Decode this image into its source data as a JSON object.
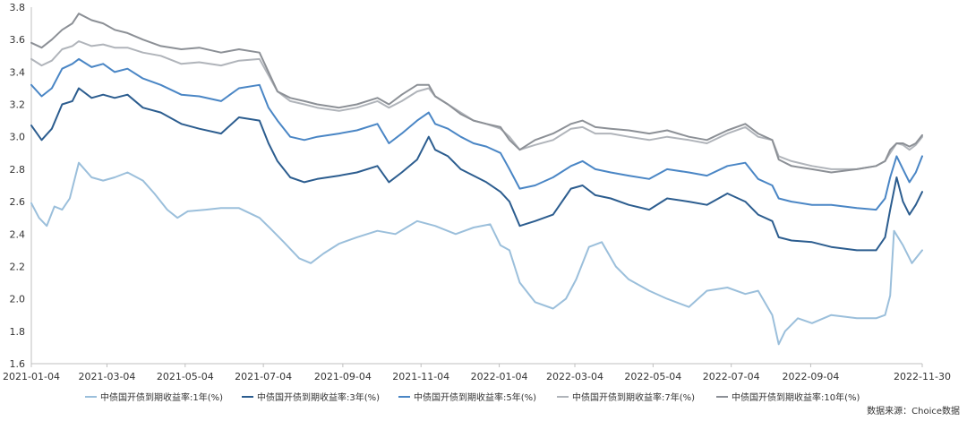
{
  "chart_data": {
    "type": "line",
    "title": "",
    "xlabel": "",
    "ylabel": "",
    "ylim": [
      1.6,
      3.8
    ],
    "yticks": [
      "1.6",
      "1.8",
      "2.0",
      "2.2",
      "2.4",
      "2.6",
      "2.8",
      "3.0",
      "3.2",
      "3.4",
      "3.6",
      "3.8"
    ],
    "x_range": [
      "2021-01-04",
      "2022-11-30"
    ],
    "xticks": [
      "2021-01-04",
      "2021-03-04",
      "2021-05-04",
      "2021-07-04",
      "2021-09-04",
      "2021-11-04",
      "2022-01-04",
      "2022-03-04",
      "2022-05-04",
      "2022-07-04",
      "2022-09-04",
      "2022-11-30"
    ],
    "grid": false,
    "legend_position": "bottom",
    "source": "数据来源：Choice数据",
    "series": [
      {
        "name": "中债国开债到期收益率:1年(%)",
        "color": "#9bbfdb",
        "x": [
          "2021-01-04",
          "2021-01-10",
          "2021-01-16",
          "2021-01-22",
          "2021-01-28",
          "2021-02-03",
          "2021-02-10",
          "2021-02-20",
          "2021-03-01",
          "2021-03-10",
          "2021-03-20",
          "2021-04-01",
          "2021-04-10",
          "2021-04-20",
          "2021-04-28",
          "2021-05-06",
          "2021-05-20",
          "2021-06-01",
          "2021-06-15",
          "2021-07-01",
          "2021-07-10",
          "2021-07-20",
          "2021-08-01",
          "2021-08-10",
          "2021-08-20",
          "2021-09-01",
          "2021-09-15",
          "2021-10-01",
          "2021-10-15",
          "2021-11-01",
          "2021-11-15",
          "2021-12-01",
          "2021-12-15",
          "2021-12-28",
          "2022-01-05",
          "2022-01-12",
          "2022-01-20",
          "2022-02-01",
          "2022-02-15",
          "2022-02-25",
          "2022-03-05",
          "2022-03-15",
          "2022-03-25",
          "2022-04-05",
          "2022-04-15",
          "2022-05-01",
          "2022-05-15",
          "2022-06-01",
          "2022-06-15",
          "2022-07-01",
          "2022-07-15",
          "2022-07-25",
          "2022-08-05",
          "2022-08-10",
          "2022-08-15",
          "2022-08-25",
          "2022-09-05",
          "2022-09-20",
          "2022-10-10",
          "2022-10-25",
          "2022-11-01",
          "2022-11-05",
          "2022-11-08",
          "2022-11-15",
          "2022-11-22",
          "2022-11-30"
        ],
        "values": [
          2.59,
          2.5,
          2.45,
          2.57,
          2.55,
          2.62,
          2.84,
          2.75,
          2.73,
          2.75,
          2.78,
          2.73,
          2.65,
          2.55,
          2.5,
          2.54,
          2.55,
          2.56,
          2.56,
          2.5,
          2.43,
          2.35,
          2.25,
          2.22,
          2.28,
          2.34,
          2.38,
          2.42,
          2.4,
          2.48,
          2.45,
          2.4,
          2.44,
          2.46,
          2.33,
          2.3,
          2.1,
          1.98,
          1.94,
          2.0,
          2.12,
          2.32,
          2.35,
          2.2,
          2.12,
          2.05,
          2.0,
          1.95,
          2.05,
          2.07,
          2.03,
          2.05,
          1.9,
          1.72,
          1.8,
          1.88,
          1.85,
          1.9,
          1.88,
          1.88,
          1.9,
          2.02,
          2.42,
          2.33,
          2.22,
          2.3
        ]
      },
      {
        "name": "中债国开债到期收益率:3年(%)",
        "color": "#2c5d8f",
        "x": [
          "2021-01-04",
          "2021-01-12",
          "2021-01-20",
          "2021-01-28",
          "2021-02-05",
          "2021-02-10",
          "2021-02-20",
          "2021-03-01",
          "2021-03-10",
          "2021-03-20",
          "2021-04-01",
          "2021-04-15",
          "2021-05-01",
          "2021-05-15",
          "2021-06-01",
          "2021-06-15",
          "2021-07-01",
          "2021-07-08",
          "2021-07-15",
          "2021-07-25",
          "2021-08-05",
          "2021-08-15",
          "2021-09-01",
          "2021-09-15",
          "2021-10-01",
          "2021-10-10",
          "2021-10-20",
          "2021-11-01",
          "2021-11-10",
          "2021-11-15",
          "2021-11-25",
          "2021-12-05",
          "2021-12-15",
          "2021-12-25",
          "2022-01-05",
          "2022-01-12",
          "2022-01-20",
          "2022-02-01",
          "2022-02-15",
          "2022-03-01",
          "2022-03-10",
          "2022-03-20",
          "2022-04-01",
          "2022-04-15",
          "2022-05-01",
          "2022-05-15",
          "2022-06-01",
          "2022-06-15",
          "2022-07-01",
          "2022-07-15",
          "2022-07-25",
          "2022-08-05",
          "2022-08-10",
          "2022-08-20",
          "2022-09-05",
          "2022-09-20",
          "2022-10-10",
          "2022-10-25",
          "2022-11-01",
          "2022-11-05",
          "2022-11-10",
          "2022-11-15",
          "2022-11-20",
          "2022-11-25",
          "2022-11-30"
        ],
        "values": [
          3.07,
          2.98,
          3.05,
          3.2,
          3.22,
          3.3,
          3.24,
          3.26,
          3.24,
          3.26,
          3.18,
          3.15,
          3.08,
          3.05,
          3.02,
          3.12,
          3.1,
          2.96,
          2.85,
          2.75,
          2.72,
          2.74,
          2.76,
          2.78,
          2.82,
          2.72,
          2.78,
          2.86,
          3.0,
          2.92,
          2.88,
          2.8,
          2.76,
          2.72,
          2.66,
          2.6,
          2.45,
          2.48,
          2.52,
          2.68,
          2.7,
          2.64,
          2.62,
          2.58,
          2.55,
          2.62,
          2.6,
          2.58,
          2.65,
          2.6,
          2.52,
          2.48,
          2.38,
          2.36,
          2.35,
          2.32,
          2.3,
          2.3,
          2.38,
          2.55,
          2.75,
          2.6,
          2.52,
          2.58,
          2.66
        ]
      },
      {
        "name": "中债国开债到期收益率:5年(%)",
        "color": "#4a86c5",
        "x": [
          "2021-01-04",
          "2021-01-12",
          "2021-01-20",
          "2021-01-28",
          "2021-02-05",
          "2021-02-10",
          "2021-02-20",
          "2021-03-01",
          "2021-03-10",
          "2021-03-20",
          "2021-04-01",
          "2021-04-15",
          "2021-05-01",
          "2021-05-15",
          "2021-06-01",
          "2021-06-15",
          "2021-07-01",
          "2021-07-08",
          "2021-07-15",
          "2021-07-25",
          "2021-08-05",
          "2021-08-15",
          "2021-09-01",
          "2021-09-15",
          "2021-10-01",
          "2021-10-10",
          "2021-10-20",
          "2021-11-01",
          "2021-11-10",
          "2021-11-15",
          "2021-11-25",
          "2021-12-05",
          "2021-12-15",
          "2021-12-25",
          "2022-01-05",
          "2022-01-12",
          "2022-01-20",
          "2022-02-01",
          "2022-02-15",
          "2022-03-01",
          "2022-03-10",
          "2022-03-20",
          "2022-04-01",
          "2022-04-15",
          "2022-05-01",
          "2022-05-15",
          "2022-06-01",
          "2022-06-15",
          "2022-07-01",
          "2022-07-15",
          "2022-07-25",
          "2022-08-05",
          "2022-08-10",
          "2022-08-20",
          "2022-09-05",
          "2022-09-20",
          "2022-10-10",
          "2022-10-25",
          "2022-11-01",
          "2022-11-05",
          "2022-11-10",
          "2022-11-15",
          "2022-11-20",
          "2022-11-25",
          "2022-11-30"
        ],
        "values": [
          3.32,
          3.25,
          3.3,
          3.42,
          3.45,
          3.48,
          3.43,
          3.45,
          3.4,
          3.42,
          3.36,
          3.32,
          3.26,
          3.25,
          3.22,
          3.3,
          3.32,
          3.18,
          3.1,
          3.0,
          2.98,
          3.0,
          3.02,
          3.04,
          3.08,
          2.96,
          3.02,
          3.1,
          3.15,
          3.08,
          3.05,
          3.0,
          2.96,
          2.94,
          2.9,
          2.8,
          2.68,
          2.7,
          2.75,
          2.82,
          2.85,
          2.8,
          2.78,
          2.76,
          2.74,
          2.8,
          2.78,
          2.76,
          2.82,
          2.84,
          2.74,
          2.7,
          2.62,
          2.6,
          2.58,
          2.58,
          2.56,
          2.55,
          2.62,
          2.75,
          2.88,
          2.8,
          2.72,
          2.78,
          2.88
        ]
      },
      {
        "name": "中债国开债到期收益率:7年(%)",
        "color": "#b0b4ba",
        "x": [
          "2021-01-04",
          "2021-01-12",
          "2021-01-20",
          "2021-01-28",
          "2021-02-05",
          "2021-02-10",
          "2021-02-20",
          "2021-03-01",
          "2021-03-10",
          "2021-03-20",
          "2021-04-01",
          "2021-04-15",
          "2021-05-01",
          "2021-05-15",
          "2021-06-01",
          "2021-06-15",
          "2021-07-01",
          "2021-07-08",
          "2021-07-15",
          "2021-07-25",
          "2021-08-05",
          "2021-08-15",
          "2021-09-01",
          "2021-09-15",
          "2021-10-01",
          "2021-10-10",
          "2021-10-20",
          "2021-11-01",
          "2021-11-10",
          "2021-11-15",
          "2021-11-25",
          "2021-12-05",
          "2021-12-15",
          "2021-12-25",
          "2022-01-05",
          "2022-01-12",
          "2022-01-20",
          "2022-02-01",
          "2022-02-15",
          "2022-03-01",
          "2022-03-10",
          "2022-03-20",
          "2022-04-01",
          "2022-04-15",
          "2022-05-01",
          "2022-05-15",
          "2022-06-01",
          "2022-06-15",
          "2022-07-01",
          "2022-07-15",
          "2022-07-25",
          "2022-08-05",
          "2022-08-10",
          "2022-08-20",
          "2022-09-05",
          "2022-09-20",
          "2022-10-10",
          "2022-10-25",
          "2022-11-01",
          "2022-11-05",
          "2022-11-10",
          "2022-11-15",
          "2022-11-20",
          "2022-11-25",
          "2022-11-30"
        ],
        "values": [
          3.48,
          3.44,
          3.47,
          3.54,
          3.56,
          3.59,
          3.56,
          3.57,
          3.55,
          3.55,
          3.52,
          3.5,
          3.45,
          3.46,
          3.44,
          3.47,
          3.48,
          3.38,
          3.28,
          3.22,
          3.2,
          3.18,
          3.16,
          3.18,
          3.22,
          3.18,
          3.22,
          3.28,
          3.3,
          3.25,
          3.2,
          3.15,
          3.1,
          3.08,
          3.05,
          3.0,
          2.92,
          2.95,
          2.98,
          3.05,
          3.06,
          3.02,
          3.02,
          3.0,
          2.98,
          3.0,
          2.98,
          2.96,
          3.02,
          3.06,
          3.0,
          2.98,
          2.88,
          2.85,
          2.82,
          2.8,
          2.8,
          2.82,
          2.85,
          2.9,
          2.96,
          2.95,
          2.92,
          2.95,
          3.0
        ]
      },
      {
        "name": "中债国开债到期收益率:10年(%)",
        "color": "#8c9096",
        "x": [
          "2021-01-04",
          "2021-01-12",
          "2021-01-20",
          "2021-01-28",
          "2021-02-05",
          "2021-02-10",
          "2021-02-20",
          "2021-03-01",
          "2021-03-10",
          "2021-03-20",
          "2021-04-01",
          "2021-04-15",
          "2021-05-01",
          "2021-05-15",
          "2021-06-01",
          "2021-06-15",
          "2021-07-01",
          "2021-07-08",
          "2021-07-15",
          "2021-07-25",
          "2021-08-05",
          "2021-08-15",
          "2021-09-01",
          "2021-09-15",
          "2021-10-01",
          "2021-10-10",
          "2021-10-20",
          "2021-11-01",
          "2021-11-10",
          "2021-11-15",
          "2021-11-25",
          "2021-12-05",
          "2021-12-15",
          "2021-12-25",
          "2022-01-05",
          "2022-01-12",
          "2022-01-20",
          "2022-02-01",
          "2022-02-15",
          "2022-03-01",
          "2022-03-10",
          "2022-03-20",
          "2022-04-01",
          "2022-04-15",
          "2022-05-01",
          "2022-05-15",
          "2022-06-01",
          "2022-06-15",
          "2022-07-01",
          "2022-07-15",
          "2022-07-25",
          "2022-08-05",
          "2022-08-10",
          "2022-08-20",
          "2022-09-05",
          "2022-09-20",
          "2022-10-10",
          "2022-10-25",
          "2022-11-01",
          "2022-11-05",
          "2022-11-10",
          "2022-11-15",
          "2022-11-20",
          "2022-11-25",
          "2022-11-30"
        ],
        "values": [
          3.58,
          3.55,
          3.6,
          3.66,
          3.7,
          3.76,
          3.72,
          3.7,
          3.66,
          3.64,
          3.6,
          3.56,
          3.54,
          3.55,
          3.52,
          3.54,
          3.52,
          3.4,
          3.28,
          3.24,
          3.22,
          3.2,
          3.18,
          3.2,
          3.24,
          3.2,
          3.26,
          3.32,
          3.32,
          3.25,
          3.2,
          3.14,
          3.1,
          3.08,
          3.06,
          2.98,
          2.92,
          2.98,
          3.02,
          3.08,
          3.1,
          3.06,
          3.05,
          3.04,
          3.02,
          3.04,
          3.0,
          2.98,
          3.04,
          3.08,
          3.02,
          2.98,
          2.86,
          2.82,
          2.8,
          2.78,
          2.8,
          2.82,
          2.85,
          2.92,
          2.96,
          2.96,
          2.94,
          2.96,
          3.01
        ]
      }
    ]
  }
}
